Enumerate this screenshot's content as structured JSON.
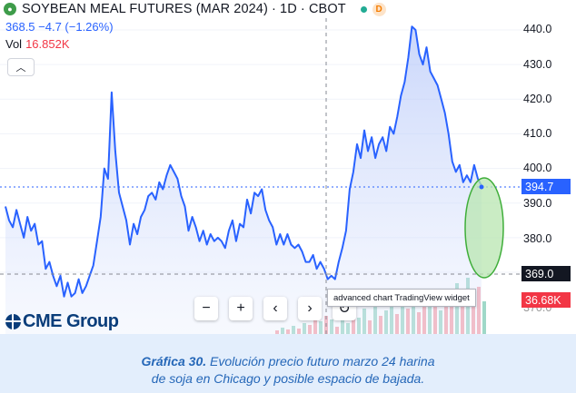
{
  "header": {
    "title": "SOYBEAN MEAL FUTURES (MAR 2024) · 1D · CBOT",
    "quote": "368.5 −4.7 (−1.26%)",
    "vol_label": "Vol",
    "vol_value": "16.852K",
    "interval_badge": "D",
    "collapse_icon": "chevron-up-icon"
  },
  "chart_data": {
    "type": "line",
    "title": "SOYBEAN MEAL FUTURES (MAR 2024) · 1D · CBOT",
    "y_axis_ticks": [
      "440.0",
      "430.0",
      "420.0",
      "410.0",
      "400.0",
      "390.0",
      "380.0",
      "370.0"
    ],
    "ylim": [
      363.5,
      442.5
    ],
    "series": [
      {
        "values": [
          389,
          385,
          383,
          388,
          384,
          380,
          386,
          382,
          384,
          378,
          379,
          371,
          373,
          369,
          366,
          369,
          363,
          367,
          363,
          364,
          368,
          364,
          366,
          369,
          372,
          379,
          386,
          400,
          397,
          422,
          405,
          393,
          389,
          385,
          378,
          384,
          381,
          386,
          388,
          392,
          393,
          391,
          396,
          394,
          398,
          401,
          399,
          397,
          392,
          389,
          382,
          386,
          383,
          379,
          382,
          378,
          381,
          379,
          380,
          379,
          377,
          382,
          385,
          379,
          384,
          383,
          391,
          387,
          393,
          392,
          394,
          388,
          385,
          383,
          378,
          381,
          378,
          381,
          378,
          377,
          378,
          376,
          373,
          373,
          375,
          371,
          373,
          371,
          368,
          369,
          368,
          373,
          377,
          382,
          394,
          399,
          407,
          403,
          411,
          405,
          409,
          403,
          407,
          409,
          405,
          412,
          410,
          415,
          421,
          425,
          432,
          441,
          440,
          433,
          430,
          435,
          428,
          426,
          424,
          420,
          416,
          410,
          402,
          399,
          401,
          396,
          398,
          396,
          401,
          397,
          395
        ],
        "color": "#2962ff"
      }
    ],
    "volume_bars": [
      {
        "x": 303,
        "h": 4,
        "up": false
      },
      {
        "x": 309,
        "h": 7,
        "up": true
      },
      {
        "x": 315,
        "h": 5,
        "up": false
      },
      {
        "x": 321,
        "h": 9,
        "up": true
      },
      {
        "x": 327,
        "h": 6,
        "up": false
      },
      {
        "x": 333,
        "h": 12,
        "up": true
      },
      {
        "x": 339,
        "h": 10,
        "up": false
      },
      {
        "x": 345,
        "h": 18,
        "up": false
      },
      {
        "x": 351,
        "h": 14,
        "up": true
      },
      {
        "x": 357,
        "h": 20,
        "up": false
      },
      {
        "x": 363,
        "h": 16,
        "up": true
      },
      {
        "x": 369,
        "h": 8,
        "up": false
      },
      {
        "x": 375,
        "h": 22,
        "up": true
      },
      {
        "x": 381,
        "h": 12,
        "up": true
      },
      {
        "x": 387,
        "h": 25,
        "up": false
      },
      {
        "x": 393,
        "h": 18,
        "up": true
      },
      {
        "x": 399,
        "h": 28,
        "up": true
      },
      {
        "x": 405,
        "h": 15,
        "up": false
      },
      {
        "x": 411,
        "h": 30,
        "up": true
      },
      {
        "x": 417,
        "h": 20,
        "up": false
      },
      {
        "x": 423,
        "h": 26,
        "up": true
      },
      {
        "x": 429,
        "h": 34,
        "up": true
      },
      {
        "x": 435,
        "h": 22,
        "up": false
      },
      {
        "x": 441,
        "h": 38,
        "up": true
      },
      {
        "x": 447,
        "h": 28,
        "up": false
      },
      {
        "x": 453,
        "h": 40,
        "up": true
      },
      {
        "x": 459,
        "h": 24,
        "up": false
      },
      {
        "x": 465,
        "h": 36,
        "up": false
      },
      {
        "x": 471,
        "h": 30,
        "up": true
      },
      {
        "x": 477,
        "h": 42,
        "up": false
      },
      {
        "x": 483,
        "h": 26,
        "up": true
      },
      {
        "x": 489,
        "h": 44,
        "up": false
      },
      {
        "x": 495,
        "h": 34,
        "up": false
      },
      {
        "x": 501,
        "h": 56,
        "up": true
      },
      {
        "x": 507,
        "h": 40,
        "up": false
      },
      {
        "x": 513,
        "h": 62,
        "up": true
      },
      {
        "x": 519,
        "h": 48,
        "up": false
      },
      {
        "x": 525,
        "h": 52,
        "up": false
      },
      {
        "x": 531,
        "h": 36,
        "up": true
      }
    ],
    "current_price": "394.7",
    "marker_price": "369.0",
    "volume_tag": "36.68K",
    "colors": {
      "line": "#2962ff",
      "fill": "#c9d6fb",
      "current_tag": "#2962ff",
      "marker_tag": "#131722",
      "volume_tag": "#f23645",
      "ellipse_fill": "#b8e6b0",
      "ellipse_stroke": "#3fae3a"
    }
  },
  "toolbar": {
    "zoom_out": "−",
    "zoom_in": "+",
    "scroll_left": "‹",
    "scroll_right": "›",
    "reset": "↻"
  },
  "tooltip": "advanced chart TradingView widget",
  "branding": {
    "cme": "CME Group"
  },
  "caption": {
    "label": "Gráfica 30.",
    "line1_rest": " Evolución precio futuro marzo 24 harina",
    "line2": "de soja en Chicago y posible espacio de bajada."
  }
}
